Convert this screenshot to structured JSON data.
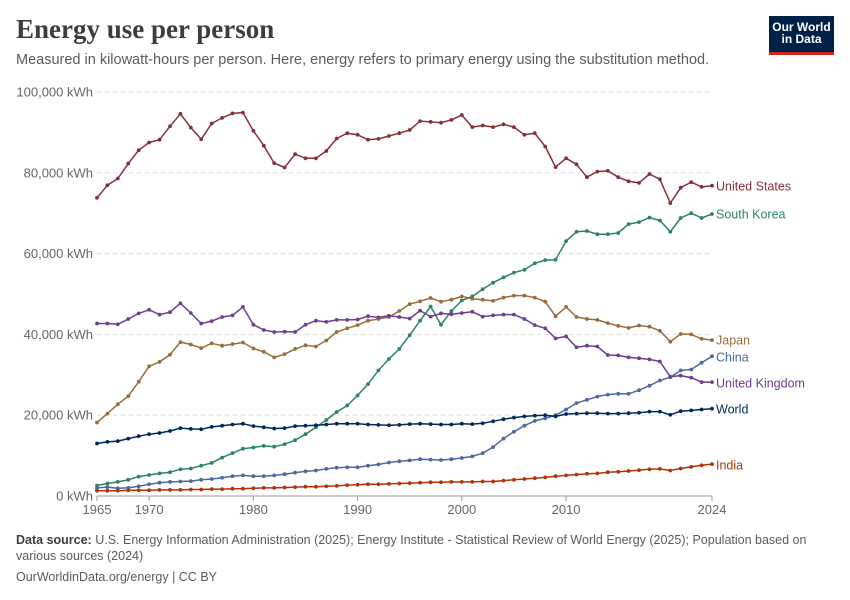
{
  "header": {
    "title": "Energy use per person",
    "subtitle": "Measured in kilowatt-hours per person. Here, energy refers to primary energy using the substitution method.",
    "logo_line1": "Our World",
    "logo_line2": "in Data"
  },
  "footer": {
    "source_label": "Data source:",
    "source_text": "U.S. Energy Information Administration (2025); Energy Institute - Statistical Review of World Energy (2025); Population based on various sources (2024)",
    "credit": "OurWorldinData.org/energy | CC BY"
  },
  "colors": {
    "United States": "#883039",
    "South Korea": "#2c8465",
    "Japan": "#996d39",
    "China": "#4c6a9c",
    "United Kingdom": "#6d3e91",
    "World": "#00295b",
    "India": "#b13507"
  },
  "chart_data": {
    "type": "line",
    "title": "Energy use per person",
    "ylabel": "",
    "ylim": [
      0,
      100000
    ],
    "xlim": [
      1965,
      2024
    ],
    "y_ticks": [
      0,
      20000,
      40000,
      60000,
      80000,
      100000
    ],
    "y_tick_labels": [
      "0 kWh",
      "20,000 kWh",
      "40,000 kWh",
      "60,000 kWh",
      "80,000 kWh",
      "100,000 kWh"
    ],
    "x_ticks": [
      1965,
      1970,
      1980,
      1990,
      2000,
      2010,
      2024
    ],
    "x_tick_labels": [
      "1965",
      "1970",
      "1980",
      "1990",
      "2000",
      "2010",
      "2024"
    ],
    "grid": true,
    "legend": "inline labels at line ends",
    "years": [
      1965,
      1966,
      1967,
      1968,
      1969,
      1970,
      1971,
      1972,
      1973,
      1974,
      1975,
      1976,
      1977,
      1978,
      1979,
      1980,
      1981,
      1982,
      1983,
      1984,
      1985,
      1986,
      1987,
      1988,
      1989,
      1990,
      1991,
      1992,
      1993,
      1994,
      1995,
      1996,
      1997,
      1998,
      1999,
      2000,
      2001,
      2002,
      2003,
      2004,
      2005,
      2006,
      2007,
      2008,
      2009,
      2010,
      2011,
      2012,
      2013,
      2014,
      2015,
      2016,
      2017,
      2018,
      2019,
      2020,
      2021,
      2022,
      2023,
      2024
    ],
    "series": [
      {
        "name": "United States",
        "values": [
          73800,
          76900,
          78600,
          82300,
          85600,
          87500,
          88200,
          91500,
          94600,
          91200,
          88300,
          92200,
          93600,
          94700,
          94900,
          90400,
          86700,
          82400,
          81300,
          84600,
          83600,
          83600,
          85400,
          88500,
          89800,
          89400,
          88200,
          88400,
          89100,
          89800,
          90600,
          92800,
          92600,
          92400,
          93100,
          94300,
          91300,
          91700,
          91300,
          92000,
          91300,
          89400,
          89800,
          86500,
          81400,
          83600,
          82100,
          78900,
          80300,
          80500,
          78900,
          77900,
          77500,
          79700,
          78400,
          72500,
          76300,
          77700,
          76500,
          76800
        ]
      },
      {
        "name": "South Korea",
        "values": [
          2600,
          3100,
          3500,
          4000,
          4800,
          5200,
          5600,
          5900,
          6600,
          6800,
          7500,
          8200,
          9500,
          10600,
          11700,
          12000,
          12400,
          12200,
          12800,
          13800,
          15300,
          17000,
          18800,
          20800,
          22400,
          24900,
          27700,
          31100,
          33900,
          36400,
          39800,
          43400,
          46900,
          42400,
          45800,
          48400,
          49400,
          51200,
          52800,
          54100,
          55300,
          56000,
          57600,
          58400,
          58500,
          63100,
          65400,
          65600,
          64800,
          64800,
          65100,
          67300,
          67800,
          68900,
          68200,
          65400,
          68800,
          70000,
          68800,
          69800
        ]
      },
      {
        "name": "Japan",
        "values": [
          18200,
          20400,
          22700,
          24700,
          28300,
          32100,
          33200,
          35000,
          38100,
          37500,
          36600,
          37800,
          37200,
          37600,
          38000,
          36500,
          35700,
          34300,
          35100,
          36400,
          37300,
          37000,
          38500,
          40600,
          41500,
          42300,
          43400,
          43800,
          44300,
          45800,
          47500,
          48200,
          49000,
          48100,
          48600,
          49400,
          48800,
          48600,
          48300,
          49100,
          49600,
          49600,
          49100,
          48100,
          44500,
          46800,
          44300,
          43800,
          43600,
          42800,
          42100,
          41600,
          42200,
          41900,
          40900,
          38200,
          40100,
          40000,
          38900,
          38600
        ]
      },
      {
        "name": "China",
        "values": [
          2000,
          2200,
          1900,
          2000,
          2400,
          2900,
          3300,
          3500,
          3600,
          3700,
          4000,
          4200,
          4500,
          4900,
          5100,
          4900,
          4900,
          5100,
          5400,
          5800,
          6100,
          6300,
          6700,
          7000,
          7100,
          7100,
          7500,
          7800,
          8300,
          8600,
          8800,
          9100,
          9000,
          8900,
          9100,
          9400,
          9800,
          10600,
          12100,
          14200,
          15900,
          17400,
          18600,
          19200,
          20000,
          21400,
          23000,
          23800,
          24600,
          25100,
          25300,
          25300,
          26200,
          27300,
          28600,
          29400,
          31100,
          31300,
          33000,
          34600
        ]
      },
      {
        "name": "United Kingdom",
        "values": [
          42700,
          42700,
          42500,
          43800,
          45200,
          46100,
          44900,
          45500,
          47700,
          45300,
          42700,
          43300,
          44300,
          44700,
          46800,
          42400,
          41100,
          40600,
          40700,
          40600,
          42400,
          43400,
          43100,
          43600,
          43600,
          43700,
          44500,
          44200,
          44600,
          44300,
          43900,
          45900,
          44400,
          45200,
          45000,
          45300,
          45600,
          44400,
          44700,
          44900,
          44900,
          43800,
          42300,
          41500,
          39000,
          39500,
          36800,
          37200,
          37000,
          34900,
          34800,
          34300,
          34100,
          33800,
          33300,
          29500,
          29800,
          29300,
          28200,
          28200
        ]
      },
      {
        "name": "World",
        "values": [
          13000,
          13400,
          13600,
          14200,
          14800,
          15300,
          15600,
          16100,
          16800,
          16600,
          16500,
          17100,
          17400,
          17700,
          17900,
          17300,
          17000,
          16700,
          16800,
          17300,
          17400,
          17500,
          17700,
          17900,
          17900,
          17900,
          17700,
          17600,
          17500,
          17600,
          17800,
          17900,
          17800,
          17700,
          17700,
          17900,
          17800,
          18000,
          18500,
          19000,
          19400,
          19700,
          19900,
          20000,
          19700,
          20300,
          20400,
          20500,
          20500,
          20400,
          20400,
          20500,
          20600,
          20900,
          20900,
          20100,
          21000,
          21200,
          21400,
          21600
        ]
      },
      {
        "name": "India",
        "values": [
          1300,
          1300,
          1300,
          1400,
          1400,
          1400,
          1500,
          1500,
          1500,
          1600,
          1600,
          1700,
          1700,
          1800,
          1800,
          1900,
          2000,
          2000,
          2100,
          2200,
          2300,
          2300,
          2400,
          2500,
          2700,
          2800,
          2900,
          2900,
          3000,
          3100,
          3200,
          3300,
          3400,
          3400,
          3500,
          3500,
          3500,
          3600,
          3600,
          3800,
          4000,
          4200,
          4400,
          4600,
          4900,
          5100,
          5300,
          5500,
          5600,
          5900,
          6000,
          6200,
          6400,
          6600,
          6700,
          6300,
          6800,
          7200,
          7600,
          7900
        ]
      }
    ]
  }
}
